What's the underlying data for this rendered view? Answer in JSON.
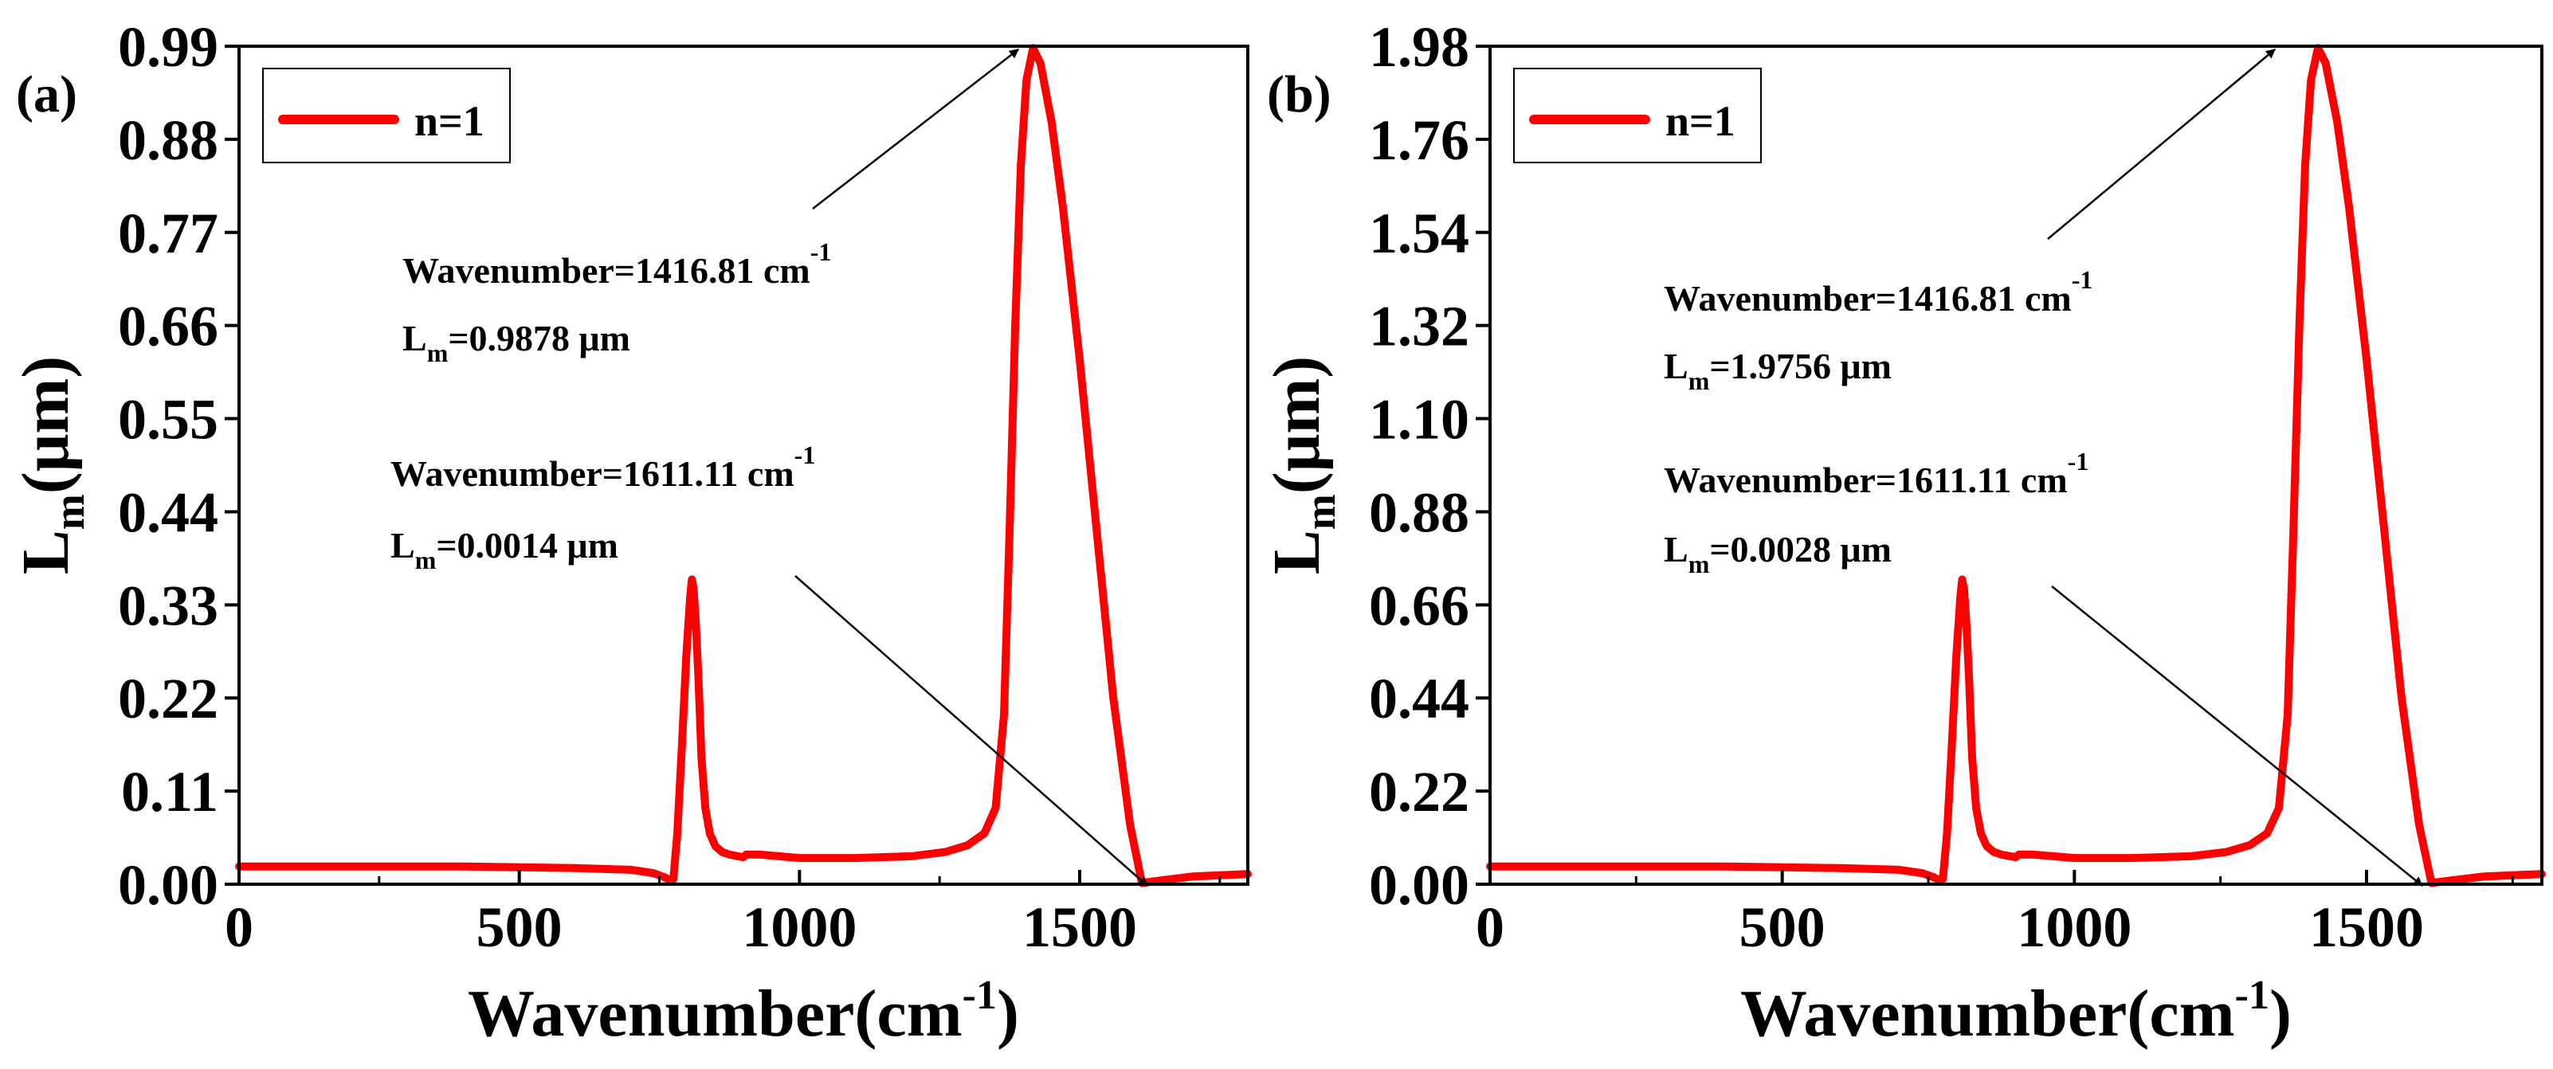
{
  "chart_data": [
    {
      "type": "line",
      "panel_label": "(a)",
      "xlabel": "Wavenumber(cm",
      "xlabel_sup": "-1",
      "xlabel_close": ")",
      "ylabel_main": "L",
      "ylabel_sub": "m",
      "ylabel_unit": "(μm)",
      "xlim": [
        0,
        1800
      ],
      "ylim": [
        0,
        0.99
      ],
      "xticks": [
        0,
        500,
        1000,
        1500
      ],
      "xtick_labels": [
        "0",
        "500",
        "1000",
        "1500"
      ],
      "yticks": [
        0,
        0.11,
        0.22,
        0.33,
        0.44,
        0.55,
        0.66,
        0.77,
        0.88,
        0.99
      ],
      "ytick_labels": [
        "0.00",
        "0.11",
        "0.22",
        "0.33",
        "0.44",
        "0.55",
        "0.66",
        "0.77",
        "0.88",
        "0.99"
      ],
      "series": [
        {
          "name": "n=1",
          "color": "#ff0000",
          "x": [
            0,
            100,
            200,
            300,
            400,
            500,
            600,
            700,
            740,
            760,
            770,
            775,
            782,
            790,
            798,
            805,
            808,
            811,
            815,
            820,
            825,
            832,
            840,
            850,
            862,
            875,
            890,
            900,
            905,
            930,
            1000,
            1100,
            1200,
            1260,
            1300,
            1330,
            1350,
            1365,
            1375,
            1385,
            1395,
            1405,
            1416.81,
            1430,
            1450,
            1470,
            1500,
            1530,
            1560,
            1590,
            1611.11,
            1640,
            1700,
            1800
          ],
          "y": [
            0.021,
            0.021,
            0.021,
            0.021,
            0.021,
            0.02,
            0.019,
            0.017,
            0.013,
            0.008,
            0.004,
            0.006,
            0.06,
            0.16,
            0.27,
            0.34,
            0.36,
            0.35,
            0.31,
            0.24,
            0.15,
            0.09,
            0.06,
            0.045,
            0.038,
            0.035,
            0.033,
            0.032,
            0.035,
            0.035,
            0.031,
            0.031,
            0.033,
            0.038,
            0.046,
            0.06,
            0.09,
            0.2,
            0.42,
            0.66,
            0.85,
            0.95,
            0.9878,
            0.97,
            0.9,
            0.8,
            0.62,
            0.42,
            0.22,
            0.07,
            0.0014,
            0.004,
            0.009,
            0.012
          ]
        }
      ],
      "annotations": [
        {
          "text_main": "Wavenumber=1416.81 cm",
          "text_sup": "-1",
          "text_l": "L",
          "text_sub": "m",
          "text_value": "=0.9878 μm",
          "x": 1416.81,
          "y": 0.9878
        },
        {
          "text_main": "Wavenumber=1611.11 cm",
          "text_sup": "-1",
          "text_l": "L",
          "text_sub": "m",
          "text_value": "=0.0014 μm",
          "x": 1611.11,
          "y": 0.0014
        }
      ],
      "legend": {
        "position": "top-left"
      }
    },
    {
      "type": "line",
      "panel_label": "(b)",
      "xlabel": "Wavenumber(cm",
      "xlabel_sup": "-1",
      "xlabel_close": ")",
      "ylabel_main": "L",
      "ylabel_sub": "m",
      "ylabel_unit": "(μm)",
      "xlim": [
        0,
        1800
      ],
      "ylim": [
        0,
        1.98
      ],
      "xticks": [
        0,
        500,
        1000,
        1500
      ],
      "xtick_labels": [
        "0",
        "500",
        "1000",
        "1500"
      ],
      "yticks": [
        0,
        0.22,
        0.44,
        0.66,
        0.88,
        1.1,
        1.32,
        1.54,
        1.76,
        1.98
      ],
      "ytick_labels": [
        "0.00",
        "0.22",
        "0.44",
        "0.66",
        "0.88",
        "1.10",
        "1.32",
        "1.54",
        "1.76",
        "1.98"
      ],
      "series": [
        {
          "name": "n=1",
          "color": "#ff0000",
          "x": [
            0,
            100,
            200,
            300,
            400,
            500,
            600,
            700,
            740,
            760,
            770,
            775,
            782,
            790,
            798,
            805,
            808,
            811,
            815,
            820,
            825,
            832,
            840,
            850,
            862,
            875,
            890,
            900,
            905,
            930,
            1000,
            1100,
            1200,
            1260,
            1300,
            1330,
            1350,
            1365,
            1375,
            1385,
            1395,
            1405,
            1416.81,
            1430,
            1450,
            1470,
            1500,
            1530,
            1560,
            1590,
            1611.11,
            1640,
            1700,
            1800
          ],
          "y": [
            0.042,
            0.042,
            0.042,
            0.042,
            0.042,
            0.04,
            0.038,
            0.034,
            0.026,
            0.016,
            0.008,
            0.012,
            0.12,
            0.32,
            0.54,
            0.68,
            0.72,
            0.7,
            0.62,
            0.48,
            0.3,
            0.18,
            0.12,
            0.09,
            0.076,
            0.07,
            0.066,
            0.064,
            0.07,
            0.07,
            0.062,
            0.062,
            0.066,
            0.076,
            0.092,
            0.12,
            0.18,
            0.4,
            0.84,
            1.32,
            1.7,
            1.9,
            1.9756,
            1.94,
            1.8,
            1.6,
            1.24,
            0.84,
            0.44,
            0.14,
            0.0028,
            0.008,
            0.018,
            0.024
          ]
        }
      ],
      "annotations": [
        {
          "text_main": "Wavenumber=1416.81 cm",
          "text_sup": "-1",
          "text_l": "L",
          "text_sub": "m",
          "text_value": "=1.9756 μm",
          "x": 1416.81,
          "y": 1.9756
        },
        {
          "text_main": "Wavenumber=1611.11 cm",
          "text_sup": "-1",
          "text_l": "L",
          "text_sub": "m",
          "text_value": "=0.0028 μm",
          "x": 1611.11,
          "y": 0.0028
        }
      ],
      "legend": {
        "position": "top-left"
      }
    }
  ]
}
